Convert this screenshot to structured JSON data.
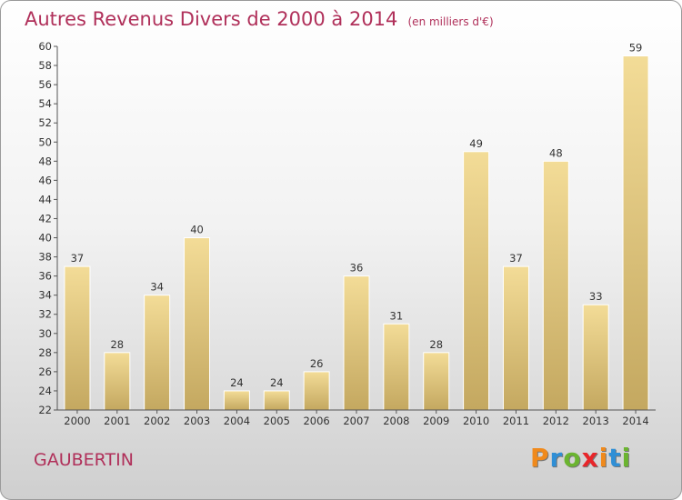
{
  "title": "Autres Revenus Divers de 2000 à 2014",
  "unit": "(en milliers d'€)",
  "town": "GAUBERTIN",
  "logo": {
    "letters": [
      "P",
      "r",
      "o",
      "x",
      "i",
      "t",
      "i"
    ],
    "colors": [
      "#f08a1c",
      "#2f8fd6",
      "#6bb430",
      "#e8262a",
      "#f08a1c",
      "#2f8fd6",
      "#6bb430"
    ]
  },
  "colors": {
    "bar_top": "#f3dc97",
    "bar_bottom": "#c4a860",
    "title": "#b0305a"
  },
  "chart_data": {
    "type": "bar",
    "categories": [
      "2000",
      "2001",
      "2002",
      "2003",
      "2004",
      "2005",
      "2006",
      "2007",
      "2008",
      "2009",
      "2010",
      "2011",
      "2012",
      "2013",
      "2014"
    ],
    "values": [
      37,
      28,
      34,
      40,
      24,
      24,
      26,
      36,
      31,
      28,
      49,
      37,
      48,
      33,
      59
    ],
    "ylim": [
      22,
      60
    ],
    "ytick_step": 2,
    "grid": false,
    "xlabel": "",
    "ylabel": ""
  }
}
